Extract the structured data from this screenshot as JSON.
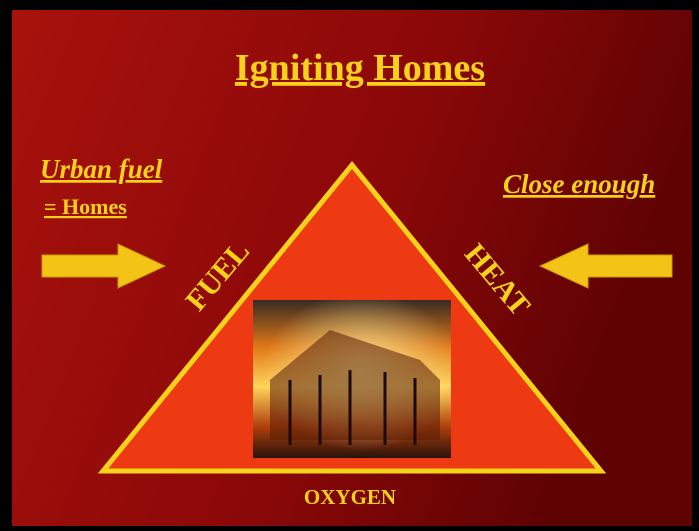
{
  "slide": {
    "title": "Igniting Homes",
    "left_label": "Urban fuel",
    "left_sublabel": "= Homes",
    "right_label": "Close enough",
    "triangle": {
      "left_side": "FUEL",
      "right_side": "HEAT",
      "base": "OXYGEN"
    }
  }
}
